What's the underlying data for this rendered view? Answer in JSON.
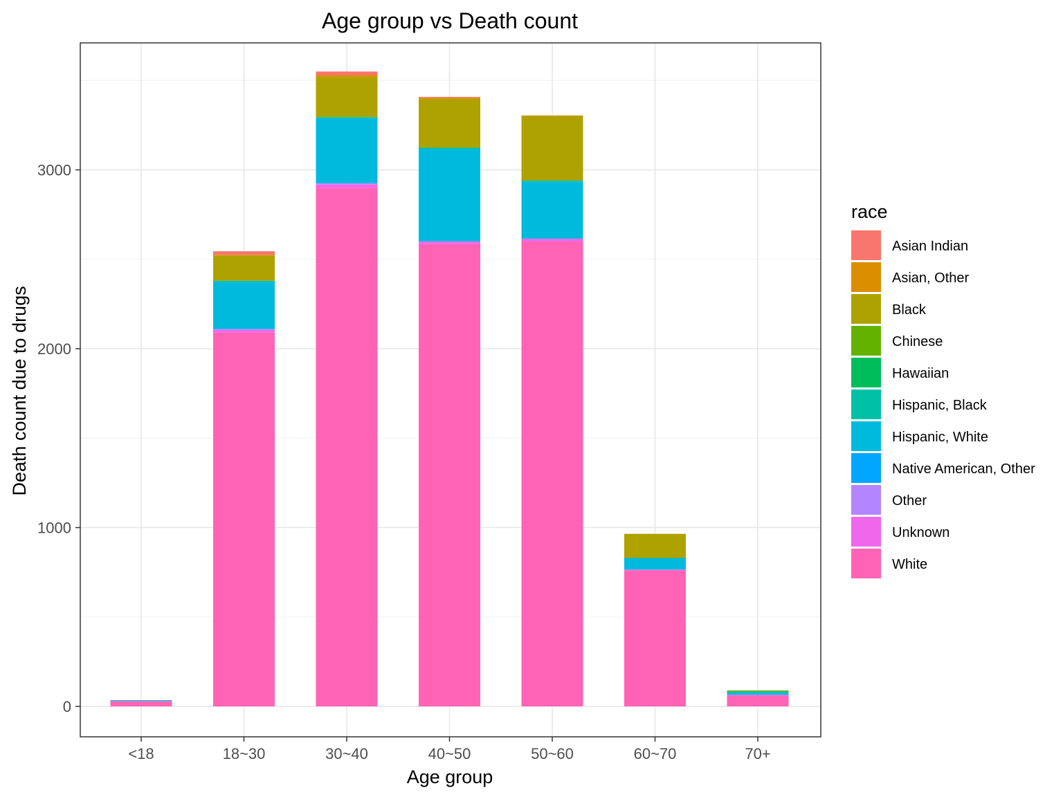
{
  "chart_data": {
    "type": "bar",
    "stacked": true,
    "title": "Age group vs Death count",
    "xlabel": "Age group",
    "ylabel": "Death count due to drugs",
    "ylim": [
      -170,
      3710
    ],
    "yticks": [
      0,
      1000,
      2000,
      3000
    ],
    "grid": true,
    "legend_position": "right",
    "legend_title": "race",
    "categories": [
      "<18",
      "18~30",
      "30~40",
      "40~50",
      "50~60",
      "60~70",
      "70+"
    ],
    "series": [
      {
        "name": "Asian Indian",
        "color": "#F8766D",
        "values": [
          0,
          20,
          20,
          5,
          0,
          0,
          0
        ]
      },
      {
        "name": "Asian, Other",
        "color": "#DB8E00",
        "values": [
          0,
          5,
          10,
          8,
          4,
          0,
          0
        ]
      },
      {
        "name": "Black",
        "color": "#AEA200",
        "values": [
          0,
          140,
          225,
          270,
          360,
          135,
          5
        ]
      },
      {
        "name": "Chinese",
        "color": "#64B200",
        "values": [
          0,
          0,
          0,
          0,
          0,
          0,
          0
        ]
      },
      {
        "name": "Hawaiian",
        "color": "#00BD5C",
        "values": [
          0,
          0,
          0,
          5,
          0,
          0,
          0
        ]
      },
      {
        "name": "Hispanic, Black",
        "color": "#00C1A7",
        "values": [
          0,
          5,
          5,
          0,
          5,
          0,
          10
        ]
      },
      {
        "name": "Hispanic, White",
        "color": "#00BADE",
        "values": [
          5,
          265,
          365,
          520,
          320,
          65,
          10
        ]
      },
      {
        "name": "Native American, Other",
        "color": "#00A6FF",
        "values": [
          0,
          0,
          0,
          0,
          0,
          0,
          0
        ]
      },
      {
        "name": "Other",
        "color": "#B385FF",
        "values": [
          0,
          5,
          5,
          0,
          0,
          0,
          0
        ]
      },
      {
        "name": "Unknown",
        "color": "#EF67EB",
        "values": [
          0,
          15,
          20,
          15,
          15,
          5,
          5
        ]
      },
      {
        "name": "White",
        "color": "#FF63B6",
        "values": [
          30,
          2090,
          2900,
          2585,
          2600,
          760,
          60
        ]
      }
    ]
  }
}
